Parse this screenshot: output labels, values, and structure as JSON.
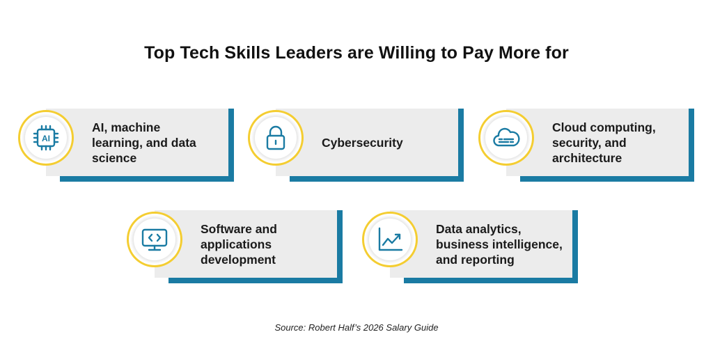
{
  "title": "Top Tech Skills Leaders are Willing to Pay More for",
  "accent_color": "#1a7ba3",
  "ring_color": "#f4cd31",
  "cards": [
    {
      "label": "AI, machine\nlearning, and data\nscience",
      "icon": "ai-chip-icon",
      "icon_text": "AI"
    },
    {
      "label": "Cybersecurity",
      "icon": "padlock-icon"
    },
    {
      "label": "Cloud computing,\nsecurity, and\narchitecture",
      "icon": "cloud-icon"
    },
    {
      "label": "Software and\napplications\ndevelopment",
      "icon": "code-monitor-icon"
    },
    {
      "label": "Data analytics,\nbusiness intelligence,\nand reporting",
      "icon": "trend-chart-icon"
    }
  ],
  "source": "Source: Robert Half’s 2026 Salary Guide"
}
